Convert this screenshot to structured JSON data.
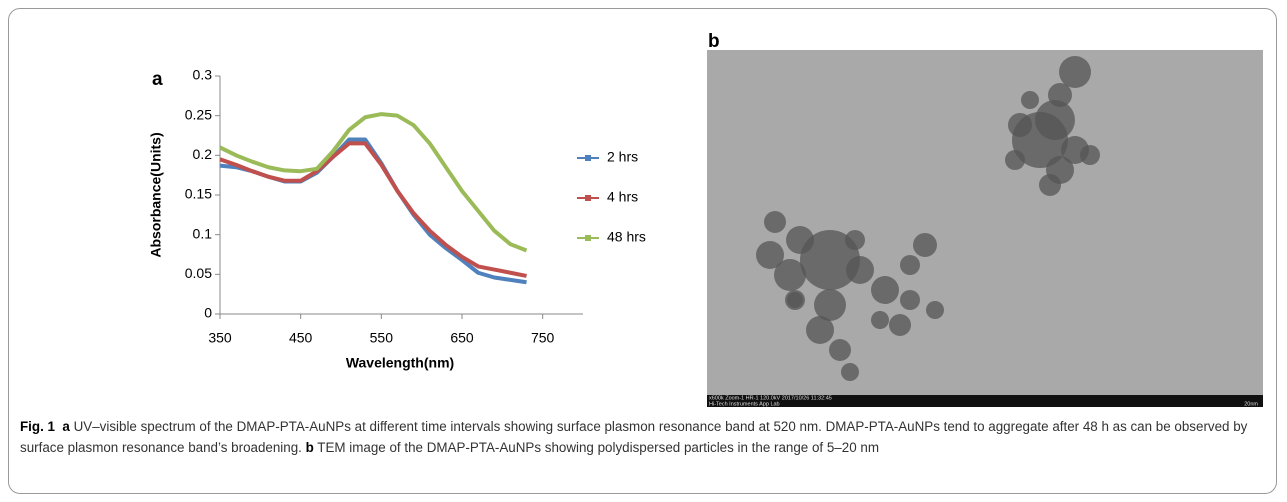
{
  "chart_data": {
    "type": "line",
    "panel_label": "a",
    "x_label": "Wavelength(nm)",
    "y_label": "Absorbance(Units)",
    "x": [
      350,
      370,
      390,
      410,
      430,
      450,
      470,
      490,
      510,
      530,
      550,
      570,
      590,
      610,
      630,
      650,
      670,
      690,
      710,
      730
    ],
    "series": [
      {
        "name": "2 hrs",
        "color": "#4f81bd",
        "values": [
          0.187,
          0.185,
          0.18,
          0.173,
          0.167,
          0.167,
          0.178,
          0.198,
          0.22,
          0.22,
          0.19,
          0.155,
          0.125,
          0.1,
          0.083,
          0.068,
          0.052,
          0.046,
          0.043,
          0.04
        ]
      },
      {
        "name": "4 hrs",
        "color": "#c0504d",
        "values": [
          0.195,
          0.188,
          0.18,
          0.173,
          0.168,
          0.168,
          0.18,
          0.198,
          0.215,
          0.215,
          0.188,
          0.155,
          0.127,
          0.105,
          0.087,
          0.072,
          0.06,
          0.056,
          0.052,
          0.048
        ]
      },
      {
        "name": "48 hrs",
        "color": "#9bbb59",
        "values": [
          0.21,
          0.2,
          0.192,
          0.185,
          0.181,
          0.18,
          0.183,
          0.205,
          0.232,
          0.248,
          0.252,
          0.25,
          0.238,
          0.215,
          0.185,
          0.155,
          0.13,
          0.105,
          0.088,
          0.08
        ]
      }
    ],
    "xlim": [
      350,
      800
    ],
    "xticks": [
      350,
      450,
      550,
      650,
      750
    ],
    "ylim": [
      0,
      0.3
    ],
    "yticks": [
      0,
      0.05,
      0.1,
      0.15,
      0.2,
      0.25,
      0.3
    ],
    "grid": false,
    "legend": "right"
  },
  "image_panel": {
    "label": "b",
    "info_line_1": "x600k Zoom-1 HR-1 120.0kV 2017/10/26 11:32:45",
    "info_line_2": "Hi-Tech Instruments App Lab",
    "scale": "20nm"
  },
  "caption": {
    "fig": "Fig. 1",
    "a_label": "a",
    "a_text": "UV–visible spectrum of the DMAP-PTA-AuNPs at different time intervals showing surface plasmon resonance band at 520 nm. DMAP-PTA-AuNPs tend to aggregate after 48 h as can be observed by surface plasmon resonance band’s broadening.",
    "b_label": "b",
    "b_text": "TEM image of the DMAP-PTA-AuNPs showing polydispersed particles in the range of 5–20 nm"
  }
}
